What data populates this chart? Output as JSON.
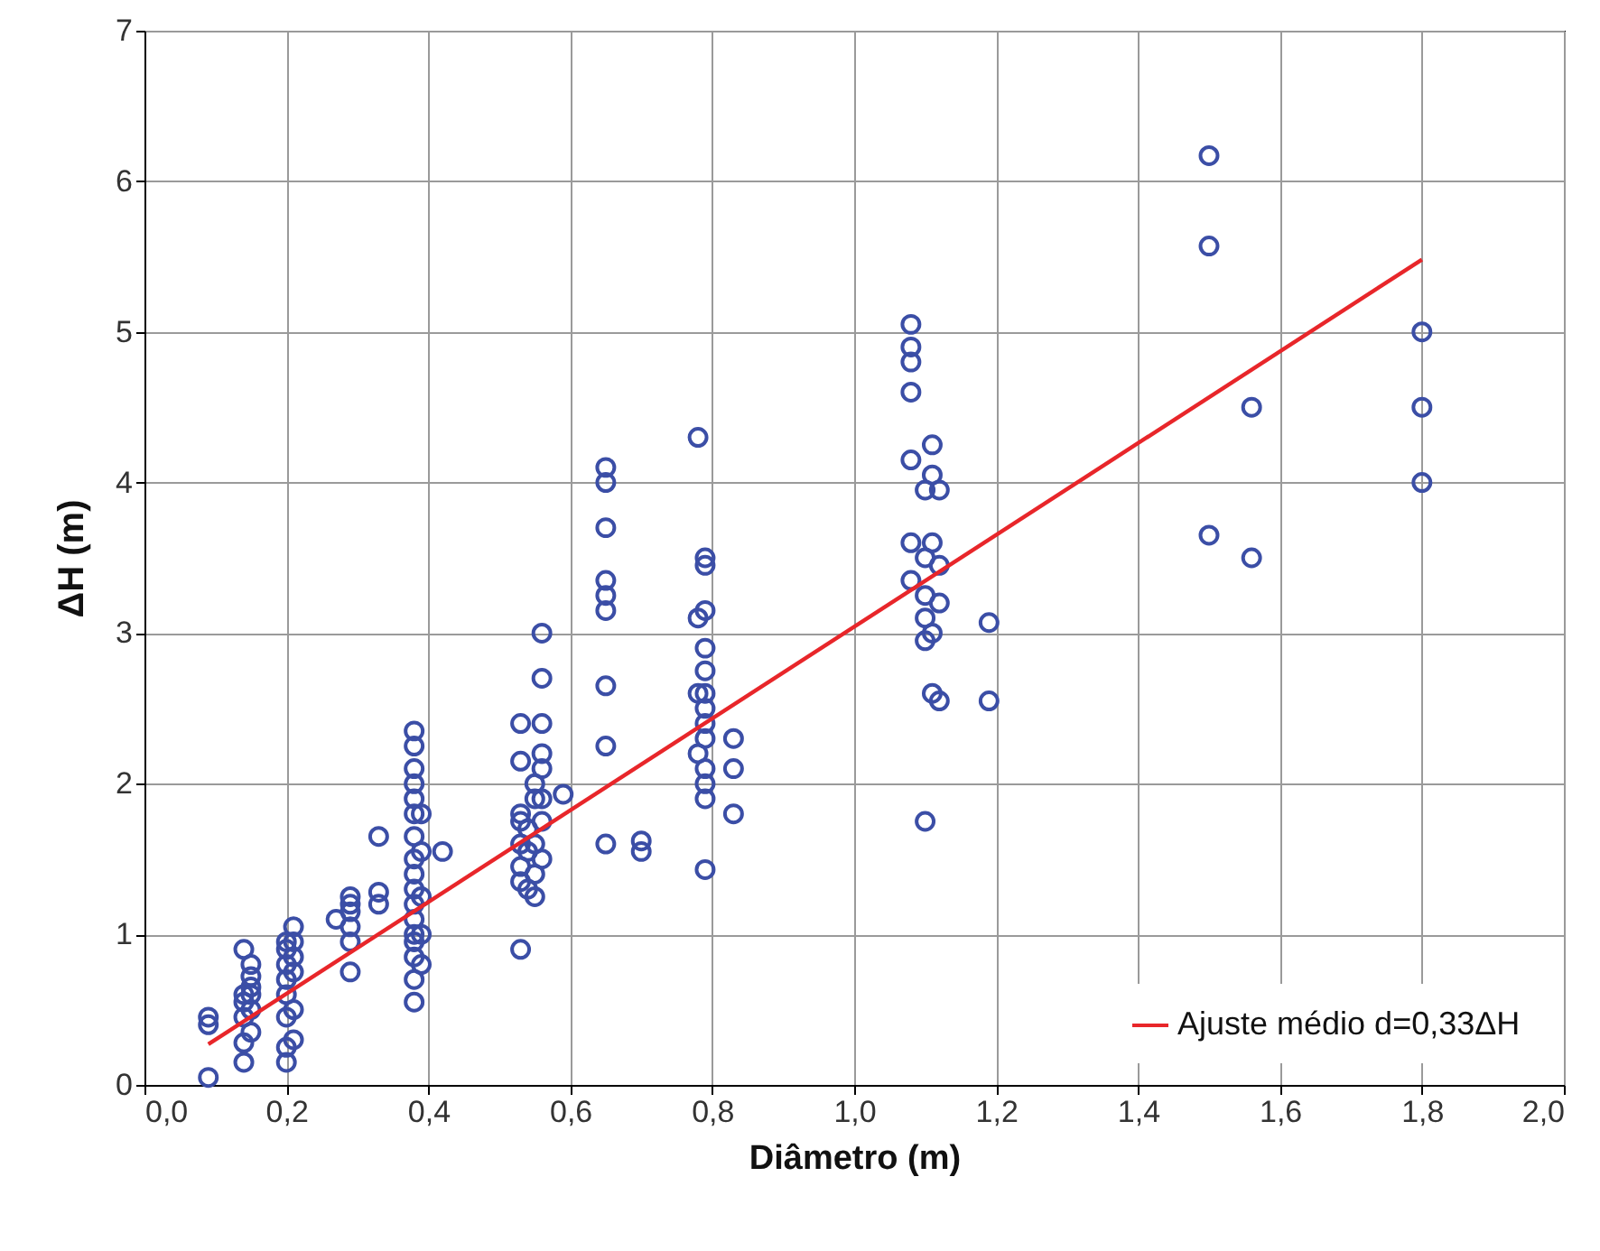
{
  "chart_data": {
    "type": "scatter",
    "xlabel": "Diâmetro (m)",
    "ylabel": "ΔH (m)",
    "xlim": [
      0,
      2
    ],
    "ylim": [
      0,
      7
    ],
    "xticks": [
      {
        "value": 0,
        "label": "0,0"
      },
      {
        "value": 0.2,
        "label": "0,2"
      },
      {
        "value": 0.4,
        "label": "0,4"
      },
      {
        "value": 0.6,
        "label": "0,6"
      },
      {
        "value": 0.8,
        "label": "0,8"
      },
      {
        "value": 1,
        "label": "1,0"
      },
      {
        "value": 1.2,
        "label": "1,2"
      },
      {
        "value": 1.4,
        "label": "1,4"
      },
      {
        "value": 1.6,
        "label": "1,6"
      },
      {
        "value": 1.8,
        "label": "1,8"
      },
      {
        "value": 2,
        "label": "2,0"
      }
    ],
    "yticks": [
      0,
      1,
      2,
      3,
      4,
      5,
      6,
      7
    ],
    "grid": true,
    "legend": "bottom right",
    "series": [
      {
        "color": "#3b4ea6",
        "marker": "circle",
        "x": [
          0.09,
          0.09,
          0.09,
          0.14,
          0.14,
          0.14,
          0.14,
          0.14,
          0.14,
          0.15,
          0.15,
          0.15,
          0.15,
          0.15,
          0.15,
          0.2,
          0.2,
          0.2,
          0.2,
          0.2,
          0.2,
          0.2,
          0.2,
          0.21,
          0.21,
          0.21,
          0.21,
          0.21,
          0.21,
          0.27,
          0.29,
          0.29,
          0.29,
          0.29,
          0.29,
          0.29,
          0.33,
          0.33,
          0.33,
          0.38,
          0.38,
          0.38,
          0.38,
          0.38,
          0.38,
          0.38,
          0.38,
          0.38,
          0.38,
          0.38,
          0.38,
          0.38,
          0.38,
          0.38,
          0.38,
          0.38,
          0.39,
          0.39,
          0.39,
          0.39,
          0.39,
          0.42,
          0.53,
          0.53,
          0.53,
          0.53,
          0.53,
          0.53,
          0.53,
          0.53,
          0.54,
          0.54,
          0.54,
          0.55,
          0.55,
          0.55,
          0.55,
          0.55,
          0.56,
          0.56,
          0.56,
          0.56,
          0.56,
          0.56,
          0.56,
          0.56,
          0.59,
          0.65,
          0.65,
          0.65,
          0.65,
          0.65,
          0.65,
          0.65,
          0.65,
          0.65,
          0.7,
          0.7,
          0.78,
          0.78,
          0.78,
          0.78,
          0.79,
          0.79,
          0.79,
          0.79,
          0.79,
          0.79,
          0.79,
          0.79,
          0.79,
          0.79,
          0.79,
          0.79,
          0.79,
          0.83,
          0.83,
          0.83,
          1.08,
          1.08,
          1.08,
          1.08,
          1.08,
          1.08,
          1.08,
          1.1,
          1.1,
          1.1,
          1.1,
          1.1,
          1.1,
          1.11,
          1.11,
          1.11,
          1.11,
          1.11,
          1.12,
          1.12,
          1.12,
          1.12,
          1.19,
          1.19,
          1.5,
          1.5,
          1.5,
          1.56,
          1.56,
          1.8,
          1.8,
          1.8
        ],
        "values": [
          0.05,
          0.4,
          0.45,
          0.15,
          0.28,
          0.45,
          0.55,
          0.6,
          0.9,
          0.35,
          0.5,
          0.6,
          0.65,
          0.72,
          0.8,
          0.15,
          0.25,
          0.45,
          0.6,
          0.7,
          0.8,
          0.9,
          0.95,
          0.3,
          0.5,
          0.75,
          0.85,
          0.95,
          1.05,
          1.1,
          0.75,
          0.95,
          1.05,
          1.15,
          1.2,
          1.25,
          1.2,
          1.28,
          1.65,
          0.55,
          0.7,
          0.85,
          0.95,
          1,
          1.1,
          1.2,
          1.3,
          1.4,
          1.5,
          1.65,
          1.8,
          1.9,
          2,
          2.1,
          2.25,
          2.35,
          0.8,
          1,
          1.25,
          1.55,
          1.8,
          1.55,
          0.9,
          1.35,
          1.45,
          1.6,
          1.75,
          1.8,
          2.15,
          2.4,
          1.3,
          1.55,
          1.7,
          1.25,
          1.4,
          1.6,
          1.9,
          2,
          1.5,
          1.75,
          1.9,
          2.1,
          2.2,
          2.4,
          2.7,
          3,
          1.93,
          1.6,
          2.25,
          2.65,
          3.15,
          3.25,
          3.35,
          3.7,
          4,
          4.1,
          1.55,
          1.62,
          2.2,
          2.6,
          3.1,
          4.3,
          1.43,
          1.9,
          2,
          2.1,
          2.3,
          2.4,
          2.5,
          2.6,
          2.75,
          2.9,
          3.15,
          3.45,
          3.5,
          1.8,
          2.1,
          2.3,
          3.35,
          3.6,
          4.15,
          4.6,
          4.8,
          4.9,
          5.05,
          1.75,
          2.95,
          3.1,
          3.25,
          3.5,
          3.95,
          2.6,
          3,
          3.6,
          4.05,
          4.25,
          2.55,
          3.2,
          3.45,
          3.95,
          2.55,
          3.07,
          3.65,
          5.57,
          6.17,
          3.5,
          4.5,
          4,
          4.5,
          5
        ]
      },
      {
        "type": "line",
        "name": "Ajuste médio d=0,33ΔH",
        "color": "#e8262a",
        "x": [
          0.09,
          1.8
        ],
        "values": [
          0.27,
          5.48
        ]
      }
    ]
  }
}
